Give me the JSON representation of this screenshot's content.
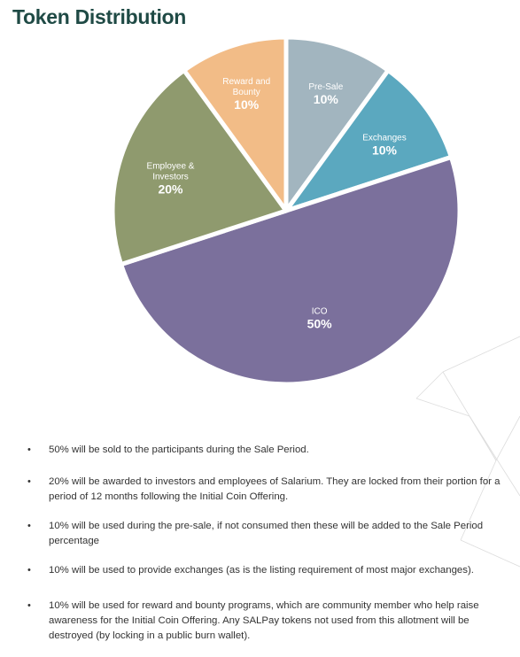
{
  "page": {
    "title": "Token Distribution"
  },
  "chart_data": {
    "type": "pie",
    "title": "Token Distribution",
    "slices": [
      {
        "label": "Pre-Sale",
        "value": 10,
        "display": "10%",
        "color": "#a2b5bf"
      },
      {
        "label": "Exchanges",
        "value": 10,
        "display": "10%",
        "color": "#5ba8bf"
      },
      {
        "label": "ICO",
        "value": 50,
        "display": "50%",
        "color": "#7b709c"
      },
      {
        "label": "Employee & Investors",
        "value": 20,
        "display": "20%",
        "color": "#8f9a6e"
      },
      {
        "label": "Reward and Bounty",
        "value": 10,
        "display": "10%",
        "color": "#f2bc87"
      }
    ]
  },
  "notes": [
    "50% will be sold to the participants during the Sale Period.",
    "20% will be awarded to investors and employees of Salarium. They are locked from their portion for a period of 12 months following the Initial Coin Offering.",
    "10% will be used during the pre-sale, if not consumed then these will be added to the Sale Period percentage",
    "10% will be used to provide exchanges (as is the listing requirement of most major exchanges).",
    "10% will be used for reward and bounty programs, which are community member who help raise awareness for the Initial Coin Offering. Any SALPay tokens not used from this allotment will be destroyed (by locking in a public burn wallet)."
  ],
  "bullet_char": "•"
}
